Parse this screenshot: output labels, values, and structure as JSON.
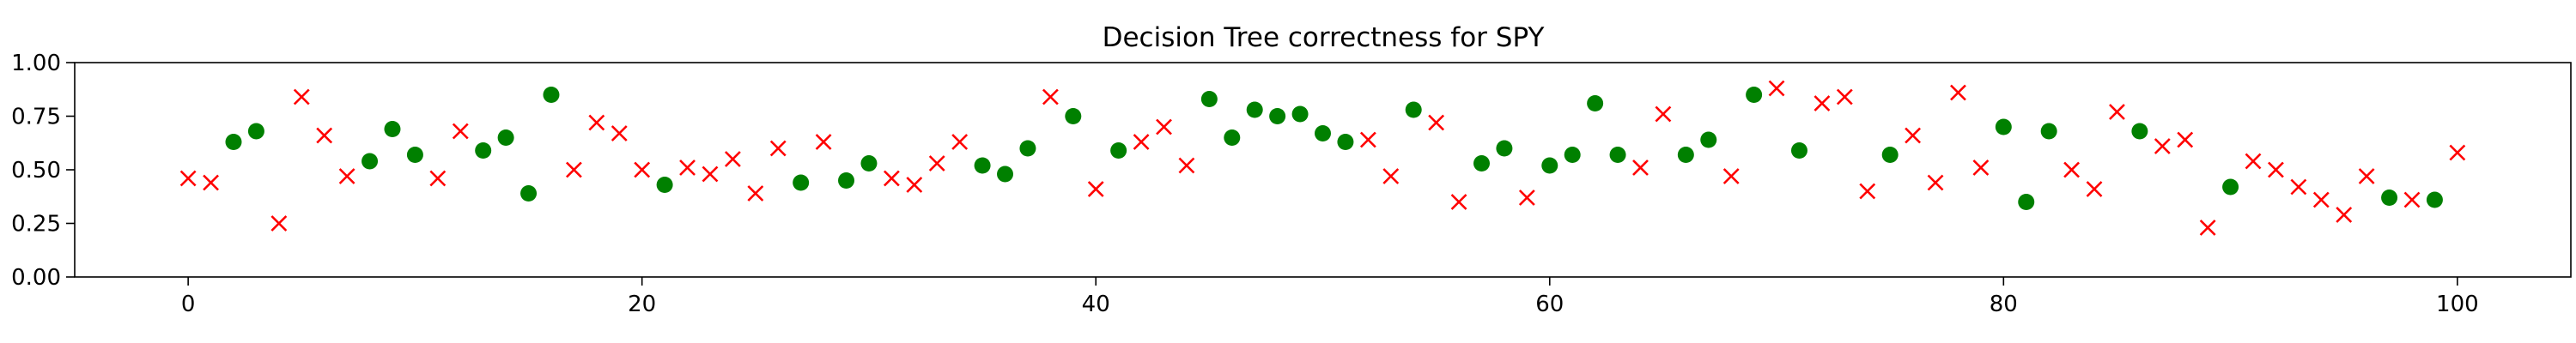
{
  "chart_data": {
    "type": "scatter",
    "title": "Decision Tree correctness for SPY",
    "xlabel": "",
    "ylabel": "",
    "xlim": [
      -5,
      105
    ],
    "ylim": [
      0,
      1
    ],
    "xticks": [
      0,
      20,
      40,
      60,
      80,
      100
    ],
    "xtick_labels": [
      "0",
      "20",
      "40",
      "60",
      "80",
      "100"
    ],
    "yticks": [
      0,
      0.25,
      0.5,
      0.75,
      1
    ],
    "ytick_labels": [
      "0.00",
      "0.25",
      "0.50",
      "0.75",
      "1.00"
    ],
    "grid": false,
    "legend": "none",
    "series": [
      {
        "marker": "circle",
        "color": "#008000",
        "points": [
          [
            2,
            0.63
          ],
          [
            3,
            0.68
          ],
          [
            8,
            0.54
          ],
          [
            9,
            0.69
          ],
          [
            10,
            0.57
          ],
          [
            13,
            0.59
          ],
          [
            14,
            0.65
          ],
          [
            15,
            0.39
          ],
          [
            16,
            0.85
          ],
          [
            21,
            0.43
          ],
          [
            27,
            0.44
          ],
          [
            29,
            0.45
          ],
          [
            30,
            0.53
          ],
          [
            35,
            0.52
          ],
          [
            36,
            0.48
          ],
          [
            37,
            0.6
          ],
          [
            39,
            0.75
          ],
          [
            41,
            0.59
          ],
          [
            45,
            0.83
          ],
          [
            46,
            0.65
          ],
          [
            47,
            0.78
          ],
          [
            48,
            0.75
          ],
          [
            49,
            0.76
          ],
          [
            50,
            0.67
          ],
          [
            51,
            0.63
          ],
          [
            54,
            0.78
          ],
          [
            57,
            0.53
          ],
          [
            58,
            0.6
          ],
          [
            60,
            0.52
          ],
          [
            61,
            0.57
          ],
          [
            62,
            0.81
          ],
          [
            63,
            0.57
          ],
          [
            66,
            0.57
          ],
          [
            67,
            0.64
          ],
          [
            69,
            0.85
          ],
          [
            71,
            0.59
          ],
          [
            75,
            0.57
          ],
          [
            80,
            0.7
          ],
          [
            81,
            0.35
          ],
          [
            82,
            0.68
          ],
          [
            86,
            0.68
          ],
          [
            90,
            0.42
          ],
          [
            97,
            0.37
          ],
          [
            99,
            0.36
          ]
        ]
      },
      {
        "marker": "x",
        "color": "#ff0000",
        "points": [
          [
            0,
            0.46
          ],
          [
            1,
            0.44
          ],
          [
            4,
            0.25
          ],
          [
            5,
            0.84
          ],
          [
            6,
            0.66
          ],
          [
            7,
            0.47
          ],
          [
            11,
            0.46
          ],
          [
            12,
            0.68
          ],
          [
            17,
            0.5
          ],
          [
            18,
            0.72
          ],
          [
            19,
            0.67
          ],
          [
            20,
            0.5
          ],
          [
            22,
            0.51
          ],
          [
            23,
            0.48
          ],
          [
            24,
            0.55
          ],
          [
            25,
            0.39
          ],
          [
            26,
            0.6
          ],
          [
            28,
            0.63
          ],
          [
            31,
            0.46
          ],
          [
            32,
            0.43
          ],
          [
            33,
            0.53
          ],
          [
            34,
            0.63
          ],
          [
            38,
            0.84
          ],
          [
            40,
            0.41
          ],
          [
            42,
            0.63
          ],
          [
            43,
            0.7
          ],
          [
            44,
            0.52
          ],
          [
            52,
            0.64
          ],
          [
            53,
            0.47
          ],
          [
            55,
            0.72
          ],
          [
            56,
            0.35
          ],
          [
            59,
            0.37
          ],
          [
            64,
            0.51
          ],
          [
            65,
            0.76
          ],
          [
            68,
            0.47
          ],
          [
            70,
            0.88
          ],
          [
            72,
            0.81
          ],
          [
            73,
            0.84
          ],
          [
            74,
            0.4
          ],
          [
            76,
            0.66
          ],
          [
            77,
            0.44
          ],
          [
            78,
            0.86
          ],
          [
            79,
            0.51
          ],
          [
            83,
            0.5
          ],
          [
            84,
            0.41
          ],
          [
            85,
            0.77
          ],
          [
            87,
            0.61
          ],
          [
            88,
            0.64
          ],
          [
            89,
            0.23
          ],
          [
            91,
            0.54
          ],
          [
            92,
            0.5
          ],
          [
            93,
            0.42
          ],
          [
            94,
            0.36
          ],
          [
            95,
            0.29
          ],
          [
            96,
            0.47
          ],
          [
            98,
            0.36
          ],
          [
            100,
            0.58
          ]
        ]
      }
    ]
  }
}
